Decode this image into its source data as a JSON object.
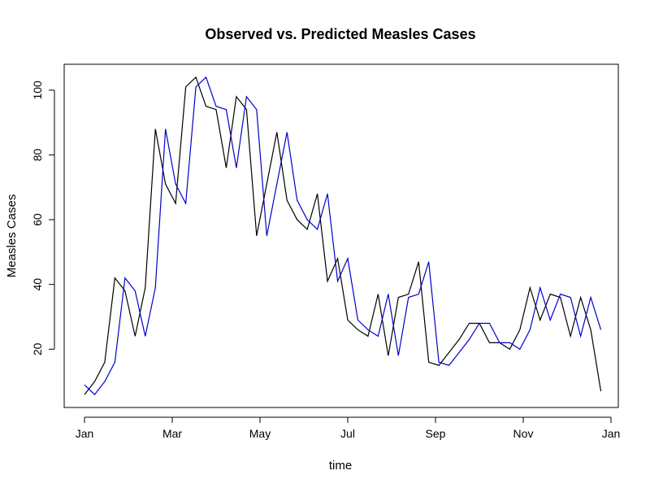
{
  "chart_data": {
    "type": "line",
    "title": "Observed vs. Predicted Measles Cases",
    "xlabel": "time",
    "ylabel": "Measles Cases",
    "x_tick_labels": [
      "Jan",
      "Mar",
      "May",
      "Jul",
      "Sep",
      "Nov",
      "Jan"
    ],
    "y_tick_labels": [
      "20",
      "40",
      "60",
      "80",
      "100"
    ],
    "y_ticks": [
      20,
      40,
      60,
      80,
      100
    ],
    "ylim": [
      2,
      108
    ],
    "x_axis": "weekly time, January to following January",
    "legend": "none",
    "grid": false,
    "series": [
      {
        "color": "#000000",
        "values": [
          6,
          10,
          16,
          42,
          38,
          24,
          39,
          88,
          71,
          65,
          101,
          104,
          95,
          94,
          76,
          98,
          94,
          55,
          71,
          87,
          66,
          60,
          57,
          68,
          41,
          48,
          29,
          26,
          24,
          37,
          18,
          36,
          37,
          47,
          16,
          15,
          19,
          23,
          28,
          28,
          22,
          22,
          20,
          26,
          39,
          29,
          37,
          36,
          24,
          36,
          26,
          7
        ]
      },
      {
        "color": "#0000cc",
        "values": [
          9,
          6,
          10,
          16,
          42,
          38,
          24,
          39,
          88,
          71,
          65,
          101,
          104,
          95,
          94,
          76,
          98,
          94,
          55,
          71,
          87,
          66,
          60,
          57,
          68,
          41,
          48,
          29,
          26,
          24,
          37,
          18,
          36,
          37,
          47,
          16,
          15,
          19,
          23,
          28,
          28,
          22,
          22,
          20,
          26,
          39,
          29,
          37,
          36,
          24,
          36,
          26
        ]
      }
    ]
  }
}
